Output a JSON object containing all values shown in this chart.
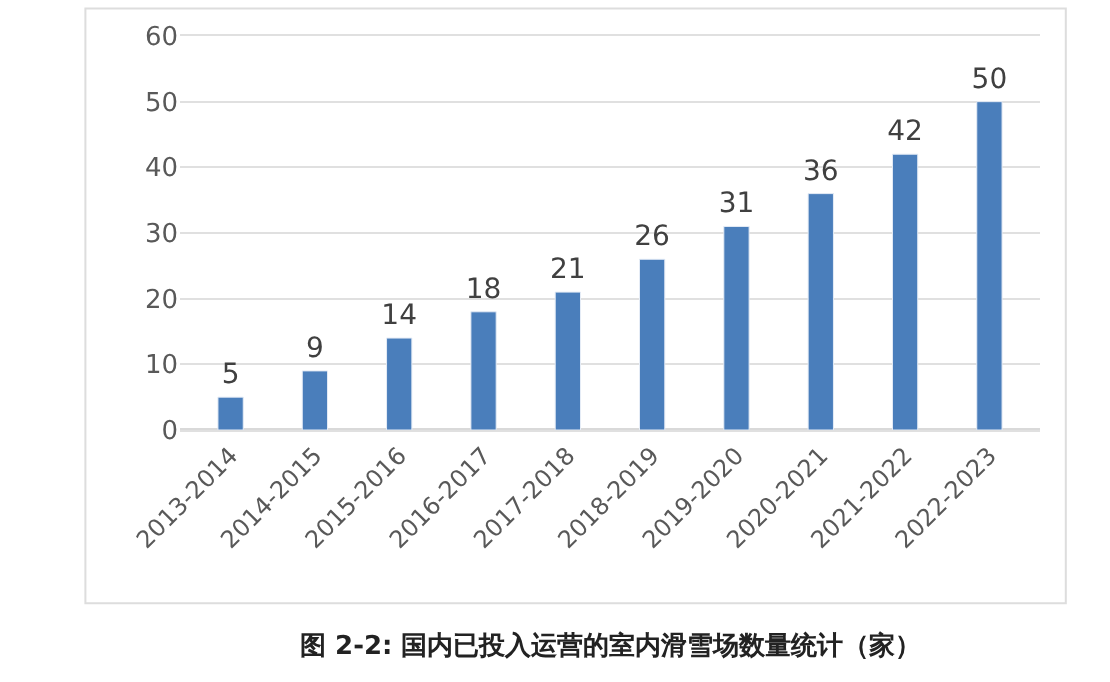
{
  "chart_data": {
    "type": "bar",
    "title": "图 2-2: 国内已投入运营的室内滑雪场数量统计（家）",
    "categories": [
      "2013-2014",
      "2014-2015",
      "2015-2016",
      "2016-2017",
      "2017-2018",
      "2018-2019",
      "2019-2020",
      "2020-2021",
      "2021-2022",
      "2022-2023"
    ],
    "values": [
      5,
      9,
      14,
      18,
      21,
      26,
      31,
      36,
      42,
      50
    ],
    "color": "#4a7ebb",
    "ylim": [
      0,
      60
    ],
    "yticks": [
      0,
      10,
      20,
      30,
      40,
      50,
      60
    ],
    "grid": "y",
    "data_labels": true
  }
}
